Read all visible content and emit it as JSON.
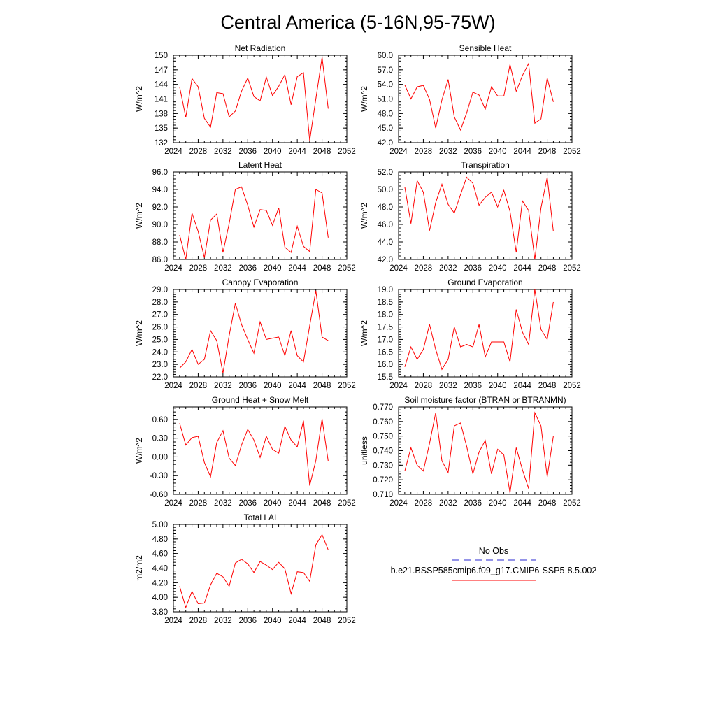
{
  "title": "Central America (5-16N,95-75W)",
  "x_tick_labels": [
    "2024",
    "2028",
    "2032",
    "2036",
    "2040",
    "2044",
    "2048",
    "2052"
  ],
  "legend": {
    "obs_label": "No Obs",
    "model_label": "b.e21.BSSP585cmip6.f09_g17.CMIP6-SSP5-8.5.002",
    "obs_color": "#2a2ad0",
    "model_color": "#ff0000"
  },
  "line_color": "#ff0000",
  "chart_data": [
    {
      "type": "line",
      "title": "Net Radiation",
      "ylabel": "W/m^2",
      "xlim": [
        2024,
        2052
      ],
      "ylim": [
        132,
        150
      ],
      "yticks": [
        "132",
        "135",
        "138",
        "141",
        "144",
        "147",
        "150"
      ],
      "x": [
        2025,
        2026,
        2027,
        2028,
        2029,
        2030,
        2031,
        2032,
        2033,
        2034,
        2035,
        2036,
        2037,
        2038,
        2039,
        2040,
        2041,
        2042,
        2043,
        2044,
        2045,
        2046,
        2047,
        2048,
        2049
      ],
      "values": [
        143.5,
        137.2,
        145.2,
        143.5,
        137.0,
        135.2,
        142.3,
        142.1,
        137.3,
        138.5,
        142.6,
        145.3,
        141.5,
        140.6,
        145.5,
        141.7,
        143.6,
        146.0,
        139.8,
        145.6,
        146.4,
        132.4,
        141.0,
        149.6,
        139.0
      ]
    },
    {
      "type": "line",
      "title": "Sensible Heat",
      "ylabel": "W/m^2",
      "xlim": [
        2024,
        2052
      ],
      "ylim": [
        42,
        60
      ],
      "yticks": [
        "42.0",
        "45.0",
        "48.0",
        "51.0",
        "54.0",
        "57.0",
        "60.0"
      ],
      "x": [
        2025,
        2026,
        2027,
        2028,
        2029,
        2030,
        2031,
        2032,
        2033,
        2034,
        2035,
        2036,
        2037,
        2038,
        2039,
        2040,
        2041,
        2042,
        2043,
        2044,
        2045,
        2046,
        2047,
        2048,
        2049
      ],
      "values": [
        53.9,
        51.0,
        53.5,
        53.8,
        50.9,
        45.0,
        50.8,
        55.0,
        47.3,
        44.6,
        48.1,
        52.4,
        51.8,
        48.9,
        53.5,
        51.6,
        51.6,
        58.1,
        52.6,
        55.8,
        58.3,
        46.0,
        46.9,
        55.3,
        50.4
      ]
    },
    {
      "type": "line",
      "title": "Latent Heat",
      "ylabel": "W/m^2",
      "xlim": [
        2024,
        2052
      ],
      "ylim": [
        86,
        96
      ],
      "yticks": [
        "86.0",
        "88.0",
        "90.0",
        "92.0",
        "94.0",
        "96.0"
      ],
      "x": [
        2025,
        2026,
        2027,
        2028,
        2029,
        2030,
        2031,
        2032,
        2033,
        2034,
        2035,
        2036,
        2037,
        2038,
        2039,
        2040,
        2041,
        2042,
        2043,
        2044,
        2045,
        2046,
        2047,
        2048,
        2049
      ],
      "values": [
        88.8,
        86.0,
        91.3,
        89.2,
        86.2,
        90.5,
        91.2,
        86.8,
        90.1,
        94.0,
        94.3,
        92.2,
        89.7,
        91.7,
        91.6,
        89.9,
        91.9,
        87.4,
        86.8,
        89.8,
        87.5,
        86.9,
        94.0,
        93.6,
        88.5
      ]
    },
    {
      "type": "line",
      "title": "Transpiration",
      "ylabel": "W/m^2",
      "xlim": [
        2024,
        2052
      ],
      "ylim": [
        42,
        52
      ],
      "yticks": [
        "42.0",
        "44.0",
        "46.0",
        "48.0",
        "50.0",
        "52.0"
      ],
      "x": [
        2025,
        2026,
        2027,
        2028,
        2029,
        2030,
        2031,
        2032,
        2033,
        2034,
        2035,
        2036,
        2037,
        2038,
        2039,
        2040,
        2041,
        2042,
        2043,
        2044,
        2045,
        2046,
        2047,
        2048,
        2049
      ],
      "values": [
        50.3,
        46.1,
        51.0,
        49.7,
        45.3,
        48.5,
        50.6,
        48.3,
        47.3,
        49.4,
        51.4,
        50.7,
        48.2,
        49.1,
        49.7,
        48.0,
        49.9,
        47.5,
        42.8,
        48.7,
        47.6,
        42.0,
        47.9,
        51.4,
        45.2
      ]
    },
    {
      "type": "line",
      "title": "Canopy Evaporation",
      "ylabel": "W/m^2",
      "xlim": [
        2024,
        2052
      ],
      "ylim": [
        22,
        29
      ],
      "yticks": [
        "22.0",
        "23.0",
        "24.0",
        "25.0",
        "26.0",
        "27.0",
        "28.0",
        "29.0"
      ],
      "x": [
        2025,
        2026,
        2027,
        2028,
        2029,
        2030,
        2031,
        2032,
        2033,
        2034,
        2035,
        2036,
        2037,
        2038,
        2039,
        2040,
        2041,
        2042,
        2043,
        2044,
        2045,
        2046,
        2047,
        2048,
        2049
      ],
      "values": [
        22.7,
        23.2,
        24.2,
        23.0,
        23.4,
        25.7,
        24.9,
        22.3,
        25.3,
        27.9,
        26.2,
        25.0,
        23.9,
        26.4,
        25.0,
        25.1,
        25.2,
        23.7,
        25.7,
        23.7,
        23.2,
        26.1,
        28.9,
        25.2,
        24.9
      ]
    },
    {
      "type": "line",
      "title": "Ground Evaporation",
      "ylabel": "W/m^2",
      "xlim": [
        2024,
        2052
      ],
      "ylim": [
        15.5,
        19.0
      ],
      "yticks": [
        "15.5",
        "16.0",
        "16.5",
        "17.0",
        "17.5",
        "18.0",
        "18.5",
        "19.0"
      ],
      "x": [
        2025,
        2026,
        2027,
        2028,
        2029,
        2030,
        2031,
        2032,
        2033,
        2034,
        2035,
        2036,
        2037,
        2038,
        2039,
        2040,
        2041,
        2042,
        2043,
        2044,
        2045,
        2046,
        2047,
        2048,
        2049
      ],
      "values": [
        15.9,
        16.7,
        16.2,
        16.6,
        17.6,
        16.6,
        15.8,
        16.2,
        17.5,
        16.7,
        16.8,
        16.7,
        17.6,
        16.3,
        16.9,
        16.9,
        16.9,
        16.1,
        18.2,
        17.3,
        16.8,
        19.0,
        17.4,
        17.0,
        18.5
      ]
    },
    {
      "type": "line",
      "title": "Ground Heat + Snow Melt",
      "ylabel": "W/m^2",
      "xlim": [
        2024,
        2052
      ],
      "ylim": [
        -0.6,
        0.8
      ],
      "yticks": [
        "-0.60",
        "-0.30",
        "0.00",
        "0.30",
        "0.60"
      ],
      "x": [
        2025,
        2026,
        2027,
        2028,
        2029,
        2030,
        2031,
        2032,
        2033,
        2034,
        2035,
        2036,
        2037,
        2038,
        2039,
        2040,
        2041,
        2042,
        2043,
        2044,
        2045,
        2046,
        2047,
        2048,
        2049
      ],
      "values": [
        0.54,
        0.19,
        0.31,
        0.33,
        -0.09,
        -0.32,
        0.23,
        0.42,
        -0.02,
        -0.14,
        0.19,
        0.44,
        0.27,
        -0.01,
        0.33,
        0.12,
        0.06,
        0.49,
        0.27,
        0.16,
        0.58,
        -0.46,
        -0.06,
        0.61,
        -0.07
      ]
    },
    {
      "type": "line",
      "title": "Soil moisture factor (BTRAN or BTRANMN)",
      "ylabel": "unitless",
      "xlim": [
        2024,
        2052
      ],
      "ylim": [
        0.71,
        0.77
      ],
      "yticks": [
        "0.710",
        "0.720",
        "0.730",
        "0.740",
        "0.750",
        "0.760",
        "0.770"
      ],
      "x": [
        2025,
        2026,
        2027,
        2028,
        2029,
        2030,
        2031,
        2032,
        2033,
        2034,
        2035,
        2036,
        2037,
        2038,
        2039,
        2040,
        2041,
        2042,
        2043,
        2044,
        2045,
        2046,
        2047,
        2048,
        2049
      ],
      "values": [
        0.726,
        0.742,
        0.73,
        0.726,
        0.745,
        0.766,
        0.733,
        0.725,
        0.757,
        0.759,
        0.743,
        0.724,
        0.739,
        0.747,
        0.724,
        0.741,
        0.737,
        0.711,
        0.742,
        0.727,
        0.714,
        0.766,
        0.757,
        0.722,
        0.75
      ]
    },
    {
      "type": "line",
      "title": "Total LAI",
      "ylabel": "m2/m2",
      "xlim": [
        2024,
        2052
      ],
      "ylim": [
        3.8,
        5.0
      ],
      "yticks": [
        "3.80",
        "4.00",
        "4.20",
        "4.40",
        "4.60",
        "4.80",
        "5.00"
      ],
      "x": [
        2025,
        2026,
        2027,
        2028,
        2029,
        2030,
        2031,
        2032,
        2033,
        2034,
        2035,
        2036,
        2037,
        2038,
        2039,
        2040,
        2041,
        2042,
        2043,
        2044,
        2045,
        2046,
        2047,
        2048,
        2049
      ],
      "values": [
        4.15,
        3.86,
        4.08,
        3.91,
        3.92,
        4.17,
        4.33,
        4.28,
        4.15,
        4.47,
        4.52,
        4.46,
        4.34,
        4.49,
        4.44,
        4.38,
        4.48,
        4.39,
        4.05,
        4.35,
        4.34,
        4.22,
        4.72,
        4.86,
        4.65
      ]
    }
  ]
}
